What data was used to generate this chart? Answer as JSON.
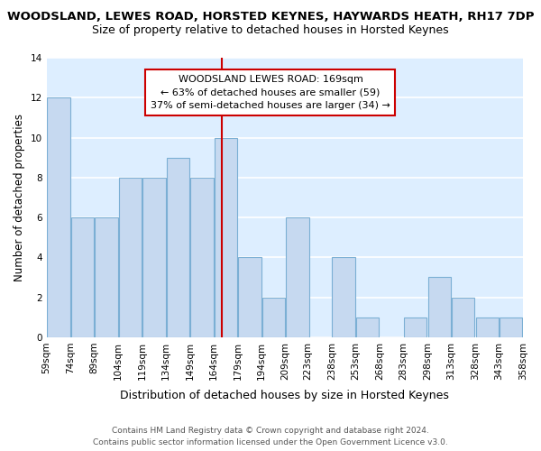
{
  "title": "WOODSLAND, LEWES ROAD, HORSTED KEYNES, HAYWARDS HEATH, RH17 7DP",
  "subtitle": "Size of property relative to detached houses in Horsted Keynes",
  "xlabel": "Distribution of detached houses by size in Horsted Keynes",
  "ylabel": "Number of detached properties",
  "bar_color": "#c6d9f0",
  "bar_edge_color": "#7bafd4",
  "background_color": "#ddeeff",
  "bins": [
    59,
    74,
    89,
    104,
    119,
    134,
    149,
    164,
    179,
    194,
    209,
    223,
    238,
    253,
    268,
    283,
    298,
    313,
    328,
    343,
    358
  ],
  "bin_labels": [
    "59sqm",
    "74sqm",
    "89sqm",
    "104sqm",
    "119sqm",
    "134sqm",
    "149sqm",
    "164sqm",
    "179sqm",
    "194sqm",
    "209sqm",
    "223sqm",
    "238sqm",
    "253sqm",
    "268sqm",
    "283sqm",
    "298sqm",
    "313sqm",
    "328sqm",
    "343sqm",
    "358sqm"
  ],
  "counts": [
    12,
    6,
    6,
    8,
    8,
    9,
    8,
    10,
    4,
    2,
    6,
    0,
    4,
    1,
    0,
    1,
    3,
    2,
    1,
    1
  ],
  "ylim": [
    0,
    14
  ],
  "yticks": [
    0,
    2,
    4,
    6,
    8,
    10,
    12,
    14
  ],
  "reference_line_x": 169,
  "reference_line_color": "#cc0000",
  "annotation_title": "WOODSLAND LEWES ROAD: 169sqm",
  "annotation_line1": "← 63% of detached houses are smaller (59)",
  "annotation_line2": "37% of semi-detached houses are larger (34) →",
  "annotation_box_color": "#ffffff",
  "annotation_box_edge_color": "#cc0000",
  "footer_line1": "Contains HM Land Registry data © Crown copyright and database right 2024.",
  "footer_line2": "Contains public sector information licensed under the Open Government Licence v3.0.",
  "title_fontsize": 9.5,
  "subtitle_fontsize": 9,
  "xlabel_fontsize": 9,
  "ylabel_fontsize": 8.5,
  "tick_fontsize": 7.5,
  "footer_fontsize": 6.5,
  "annotation_fontsize": 8
}
